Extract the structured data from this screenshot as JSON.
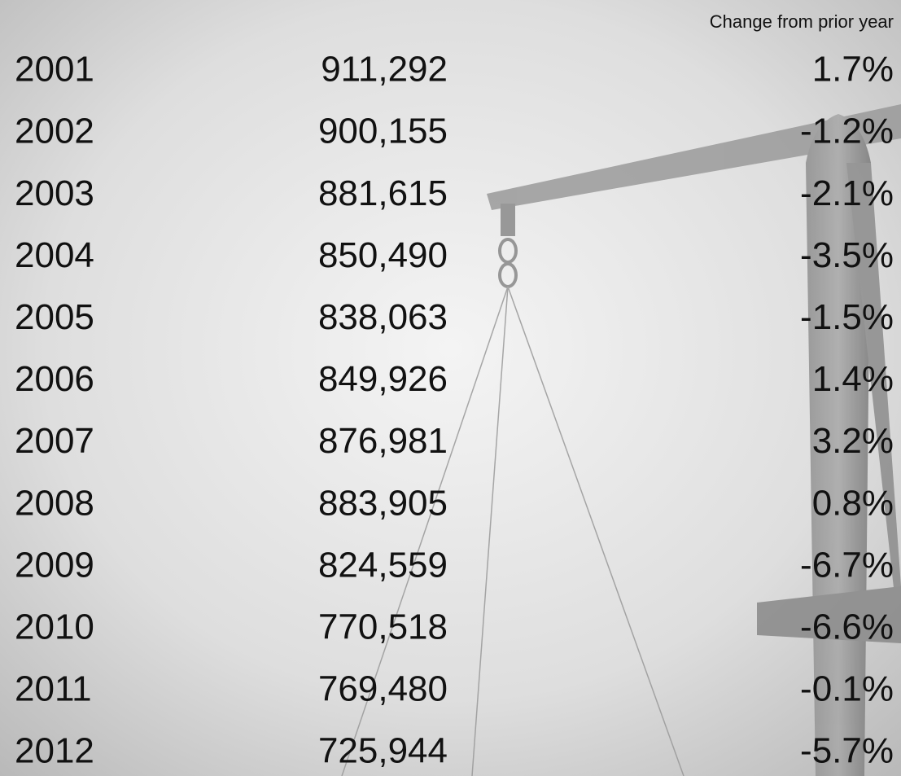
{
  "table": {
    "header": [
      "Change from prior year"
    ],
    "rows": [
      [
        "2001",
        "911,292",
        "1.7%"
      ],
      [
        "2002",
        "900,155",
        "-1.2%"
      ],
      [
        "2003",
        "881,615",
        "-2.1%"
      ],
      [
        "2004",
        "850,490",
        "-3.5%"
      ],
      [
        "2005",
        "838,063",
        "-1.5%"
      ],
      [
        "2006",
        "849,926",
        "1.4%"
      ],
      [
        "2007",
        "876,981",
        "3.2%"
      ],
      [
        "2008",
        "883,905",
        "0.8%"
      ],
      [
        "2009",
        "824,559",
        "-6.7%"
      ],
      [
        "2010",
        "770,518",
        "-6.6%"
      ],
      [
        "2011",
        "769,480",
        "-0.1%"
      ],
      [
        "2012",
        "725,944",
        "-5.7%"
      ]
    ]
  }
}
